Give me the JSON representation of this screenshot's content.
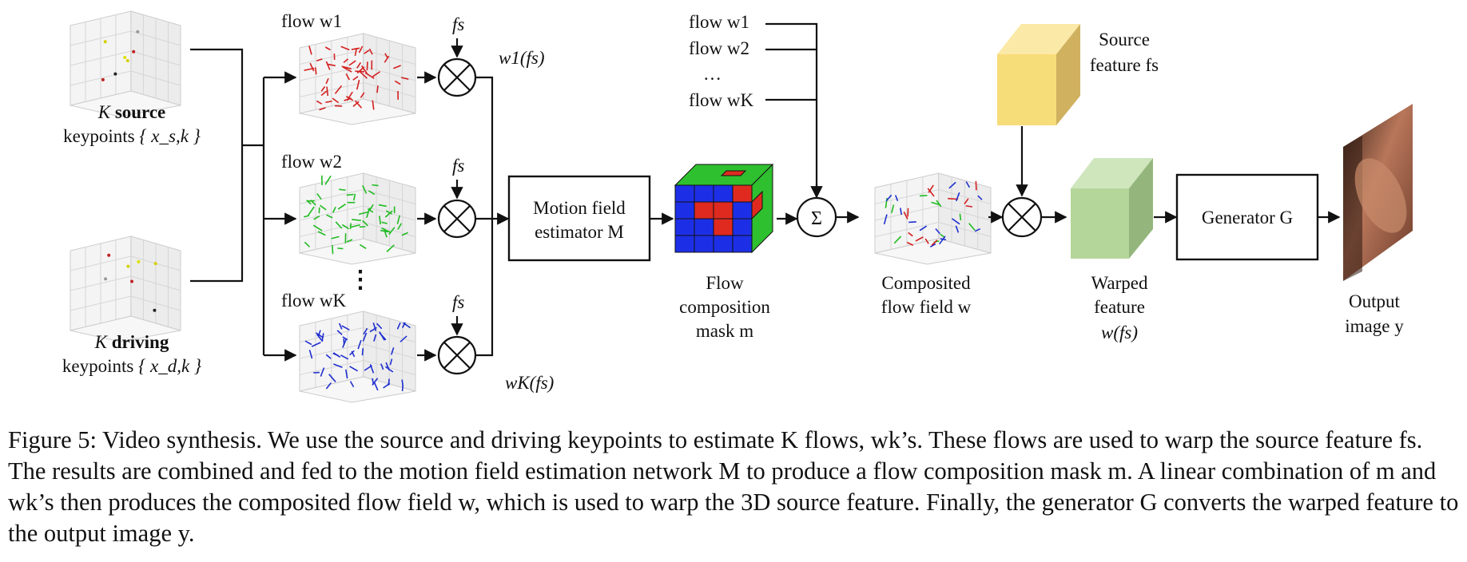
{
  "diagram": {
    "source_keypoints": {
      "line1_var": "K",
      "line1_word": "source",
      "line2_text": "keypoints",
      "line2_var": "{ x_s,k }"
    },
    "driving_keypoints": {
      "line1_var": "K",
      "line1_word": "driving",
      "line2_text": "keypoints",
      "line2_var": "{ x_d,k }"
    },
    "flows": [
      {
        "label": "flow w1",
        "color": "#d42020",
        "fs_label": "fs"
      },
      {
        "label": "flow w2",
        "color": "#22bb22",
        "fs_label": "fs"
      },
      {
        "label": "flow wK",
        "color": "#1f2fd0",
        "fs_label": "fs"
      }
    ],
    "vertical_dots": "⋮",
    "w1_fs_label": "w1(fs)",
    "wK_fs_label": "wK(fs)",
    "motion_box": {
      "line1": "Motion field",
      "line2": "estimator M"
    },
    "mask": {
      "line1": "Flow",
      "line2": "composition",
      "line3": "mask m"
    },
    "flow_list": [
      "flow w1",
      "flow w2",
      "…",
      "flow wK"
    ],
    "sum_symbol": "Σ",
    "composited": {
      "line1": "Composited",
      "line2": "flow field w"
    },
    "source_feature": {
      "line1": "Source",
      "line2": "feature fs",
      "color": "#f7dc7a"
    },
    "warped": {
      "line1": "Warped",
      "line2": "feature",
      "line3": "w(fs)",
      "color": "#b5d69a"
    },
    "generator": {
      "label": "Generator G"
    },
    "output": {
      "line1": "Output",
      "line2": "image y"
    }
  },
  "caption": {
    "text": "Figure 5: Video synthesis. We use the source and driving keypoints to estimate K flows, wk’s. These flows are used to warp the source feature fs. The results are combined and fed to the motion field estimation network M to produce a flow composition mask m. A linear combination of m and wk’s then produces the composited flow field w, which is used to warp the 3D source feature. Finally, the generator G converts the warped feature to the output image y."
  }
}
